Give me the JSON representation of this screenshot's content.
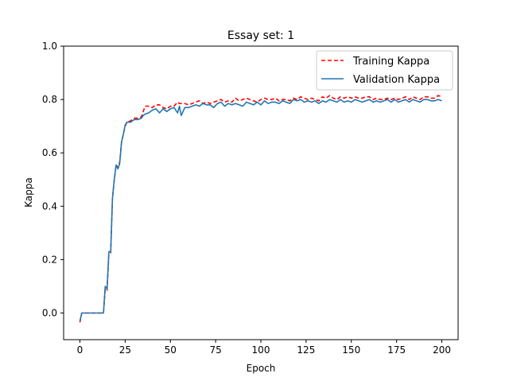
{
  "chart_data": {
    "type": "line",
    "title": "Essay set: 1",
    "xlabel": "Epoch",
    "ylabel": "Kappa",
    "xlim": [
      -9,
      209
    ],
    "ylim": [
      -0.1,
      1.0
    ],
    "xticks": [
      0,
      25,
      50,
      75,
      100,
      125,
      150,
      175,
      200
    ],
    "yticks": [
      0.0,
      0.2,
      0.4,
      0.6,
      0.8,
      1.0
    ],
    "xtick_labels": [
      "0",
      "25",
      "50",
      "75",
      "100",
      "125",
      "150",
      "175",
      "200"
    ],
    "ytick_labels": [
      "0.0",
      "0.2",
      "0.4",
      "0.6",
      "0.8",
      "1.0"
    ],
    "grid": false,
    "legend_position": "top-right",
    "series": [
      {
        "name": "Training Kappa",
        "color": "#ff0000",
        "style": "dashed",
        "x": [
          0,
          1,
          3,
          5,
          8,
          10,
          12,
          13,
          14,
          15,
          16,
          17,
          18,
          19,
          20,
          21,
          22,
          23,
          24,
          25,
          26,
          28,
          30,
          32,
          34,
          35,
          36,
          38,
          40,
          42,
          44,
          46,
          48,
          50,
          52,
          54,
          55,
          56,
          58,
          60,
          62,
          64,
          66,
          68,
          70,
          72,
          74,
          76,
          78,
          80,
          82,
          84,
          86,
          88,
          90,
          92,
          94,
          96,
          98,
          100,
          102,
          104,
          106,
          108,
          110,
          112,
          114,
          116,
          118,
          120,
          122,
          124,
          126,
          128,
          130,
          132,
          134,
          136,
          138,
          140,
          142,
          144,
          146,
          148,
          150,
          152,
          154,
          156,
          158,
          160,
          162,
          164,
          166,
          168,
          170,
          172,
          174,
          176,
          178,
          180,
          182,
          184,
          186,
          188,
          190,
          192,
          194,
          196,
          198,
          200
        ],
        "y": [
          -0.035,
          0.0,
          0.0,
          0.0,
          0.0,
          0.0,
          0.0,
          0.0,
          0.09,
          0.085,
          0.22,
          0.225,
          0.43,
          0.5,
          0.555,
          0.545,
          0.565,
          0.64,
          0.67,
          0.7,
          0.715,
          0.72,
          0.73,
          0.73,
          0.735,
          0.755,
          0.775,
          0.775,
          0.77,
          0.78,
          0.78,
          0.77,
          0.765,
          0.775,
          0.775,
          0.79,
          0.785,
          0.785,
          0.785,
          0.78,
          0.785,
          0.79,
          0.795,
          0.785,
          0.79,
          0.785,
          0.79,
          0.795,
          0.8,
          0.79,
          0.795,
          0.79,
          0.805,
          0.795,
          0.8,
          0.805,
          0.8,
          0.795,
          0.79,
          0.8,
          0.805,
          0.8,
          0.8,
          0.805,
          0.795,
          0.8,
          0.8,
          0.795,
          0.805,
          0.8,
          0.81,
          0.805,
          0.8,
          0.805,
          0.8,
          0.795,
          0.81,
          0.805,
          0.815,
          0.805,
          0.8,
          0.81,
          0.805,
          0.81,
          0.805,
          0.81,
          0.805,
          0.805,
          0.81,
          0.81,
          0.8,
          0.805,
          0.8,
          0.8,
          0.805,
          0.8,
          0.805,
          0.8,
          0.805,
          0.81,
          0.8,
          0.81,
          0.805,
          0.8,
          0.81,
          0.81,
          0.805,
          0.805,
          0.815,
          0.81
        ]
      },
      {
        "name": "Validation Kappa",
        "color": "#1f77b4",
        "style": "solid",
        "x": [
          0,
          1,
          3,
          5,
          8,
          10,
          12,
          13,
          14,
          15,
          16,
          17,
          18,
          19,
          20,
          21,
          22,
          23,
          24,
          25,
          26,
          28,
          30,
          32,
          34,
          35,
          36,
          38,
          40,
          42,
          44,
          46,
          48,
          50,
          52,
          54,
          55,
          56,
          58,
          60,
          62,
          64,
          66,
          68,
          70,
          72,
          74,
          76,
          78,
          80,
          82,
          84,
          86,
          88,
          90,
          92,
          94,
          96,
          98,
          100,
          102,
          104,
          106,
          108,
          110,
          112,
          114,
          116,
          118,
          120,
          122,
          124,
          126,
          128,
          130,
          132,
          134,
          136,
          138,
          140,
          142,
          144,
          146,
          148,
          150,
          152,
          154,
          156,
          158,
          160,
          162,
          164,
          166,
          168,
          170,
          172,
          174,
          176,
          178,
          180,
          182,
          184,
          186,
          188,
          190,
          192,
          194,
          196,
          198,
          200
        ],
        "y": [
          -0.03,
          0.0,
          0.0,
          0.0,
          0.0,
          0.0,
          0.0,
          0.0,
          0.1,
          0.09,
          0.23,
          0.23,
          0.43,
          0.5,
          0.555,
          0.54,
          0.56,
          0.64,
          0.67,
          0.705,
          0.715,
          0.715,
          0.725,
          0.725,
          0.73,
          0.74,
          0.745,
          0.75,
          0.76,
          0.765,
          0.75,
          0.765,
          0.755,
          0.765,
          0.77,
          0.75,
          0.775,
          0.74,
          0.77,
          0.77,
          0.775,
          0.78,
          0.775,
          0.785,
          0.78,
          0.78,
          0.77,
          0.785,
          0.79,
          0.775,
          0.785,
          0.78,
          0.785,
          0.78,
          0.775,
          0.79,
          0.785,
          0.78,
          0.79,
          0.78,
          0.795,
          0.785,
          0.79,
          0.79,
          0.785,
          0.795,
          0.79,
          0.785,
          0.8,
          0.795,
          0.8,
          0.79,
          0.795,
          0.79,
          0.795,
          0.785,
          0.795,
          0.79,
          0.8,
          0.795,
          0.79,
          0.8,
          0.79,
          0.795,
          0.79,
          0.8,
          0.795,
          0.79,
          0.795,
          0.8,
          0.79,
          0.795,
          0.79,
          0.795,
          0.8,
          0.79,
          0.8,
          0.79,
          0.795,
          0.8,
          0.79,
          0.8,
          0.795,
          0.79,
          0.8,
          0.8,
          0.795,
          0.795,
          0.8,
          0.795
        ]
      }
    ]
  }
}
